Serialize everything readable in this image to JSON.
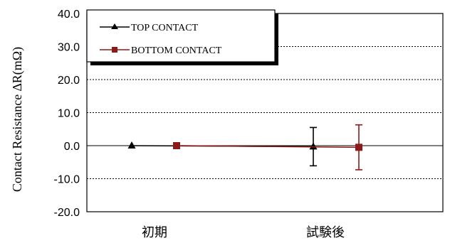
{
  "chart_data": {
    "type": "line",
    "title": "",
    "xlabel": "",
    "ylabel": "Contact Resistance  ∆R(mΩ)",
    "ylim": [
      -20,
      40
    ],
    "yticks": [
      "40.0",
      "30.0",
      "20.0",
      "10.0",
      "0.0",
      "-10.0",
      "-20.0"
    ],
    "ytick_values": [
      40,
      30,
      20,
      10,
      0,
      -10,
      -20
    ],
    "categories": [
      "初期",
      "試験後"
    ],
    "grid": true,
    "legend_position": "top-left",
    "series": [
      {
        "name": "TOP CONTACT",
        "color": "#000000",
        "marker": "triangle",
        "values": [
          0.0,
          -0.3
        ],
        "error": [
          0,
          5.8
        ]
      },
      {
        "name": "BOTTOM CONTACT",
        "color": "#8b1a1a",
        "marker": "square",
        "values": [
          0.0,
          -0.5
        ],
        "error": [
          0,
          6.8
        ]
      }
    ]
  }
}
